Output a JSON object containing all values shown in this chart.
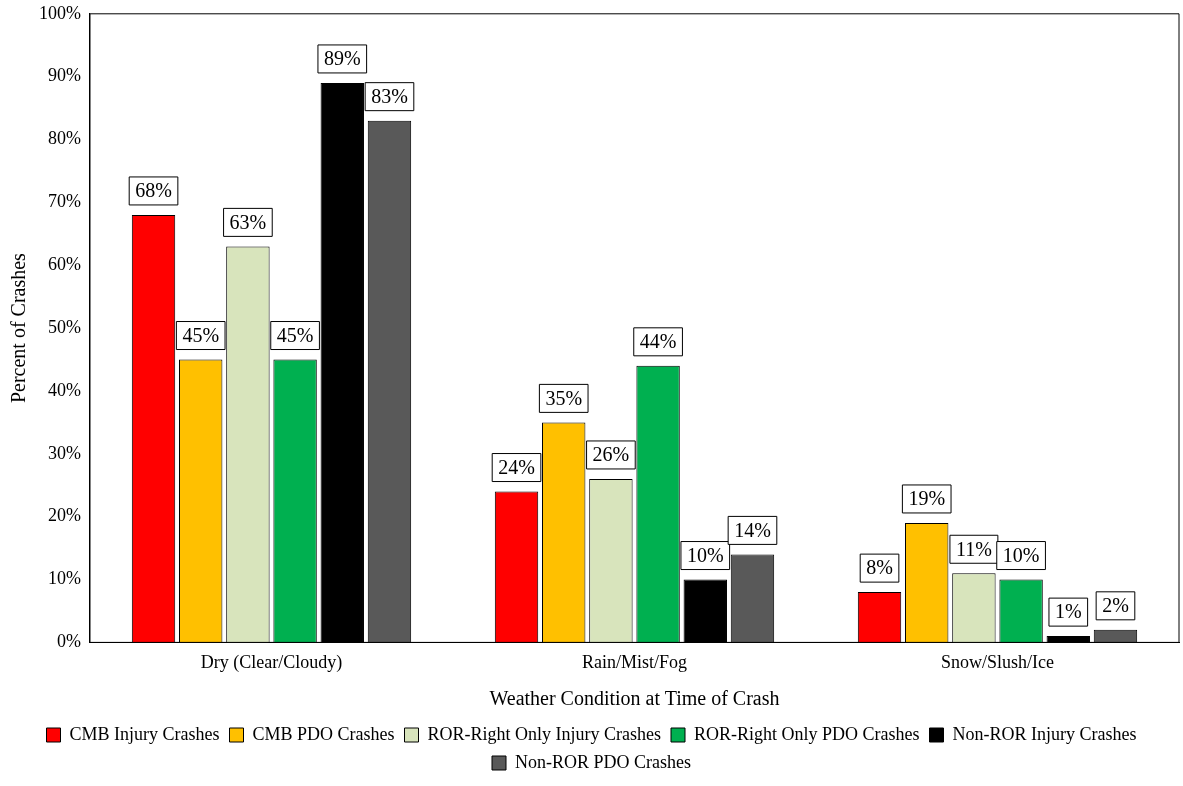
{
  "chart_data": {
    "type": "bar",
    "xlabel": "Weather Condition at Time of Crash",
    "ylabel": "Percent of Crashes",
    "categories": [
      "Dry (Clear/Cloudy)",
      "Rain/Mist/Fog",
      "Snow/Slush/Ice"
    ],
    "series": [
      {
        "name": "CMB Injury Crashes",
        "color": "#ff0000",
        "values": [
          68,
          24,
          8
        ],
        "value_labels": [
          "68%",
          "24%",
          "8%"
        ]
      },
      {
        "name": "CMB PDO Crashes",
        "color": "#ffc000",
        "values": [
          45,
          35,
          19
        ],
        "value_labels": [
          "45%",
          "35%",
          "19%"
        ]
      },
      {
        "name": "ROR-Right Only Injury Crashes",
        "color": "#d8e4bc",
        "values": [
          63,
          26,
          11
        ],
        "value_labels": [
          "63%",
          "26%",
          "11%"
        ]
      },
      {
        "name": "ROR-Right Only PDO Crashes",
        "color": "#00b050",
        "values": [
          45,
          44,
          10
        ],
        "value_labels": [
          "45%",
          "44%",
          "10%"
        ]
      },
      {
        "name": "Non-ROR Injury Crashes",
        "color": "#000000",
        "values": [
          89,
          10,
          1
        ],
        "value_labels": [
          "89%",
          "10%",
          "1%"
        ]
      },
      {
        "name": "Non-ROR PDO Crashes",
        "color": "#595959",
        "values": [
          83,
          14,
          2
        ],
        "value_labels": [
          "83%",
          "14%",
          "2%"
        ]
      }
    ],
    "ylim": [
      0,
      100
    ],
    "yticks": [
      {
        "value": 0,
        "label": "0%"
      },
      {
        "value": 10,
        "label": "10%"
      },
      {
        "value": 20,
        "label": "20%"
      },
      {
        "value": 30,
        "label": "30%"
      },
      {
        "value": 40,
        "label": "40%"
      },
      {
        "value": 50,
        "label": "50%"
      },
      {
        "value": 60,
        "label": "60%"
      },
      {
        "value": 70,
        "label": "70%"
      },
      {
        "value": 80,
        "label": "80%"
      },
      {
        "value": 90,
        "label": "90%"
      },
      {
        "value": 100,
        "label": "100%"
      }
    ],
    "grid": false,
    "legend": "bottom"
  }
}
